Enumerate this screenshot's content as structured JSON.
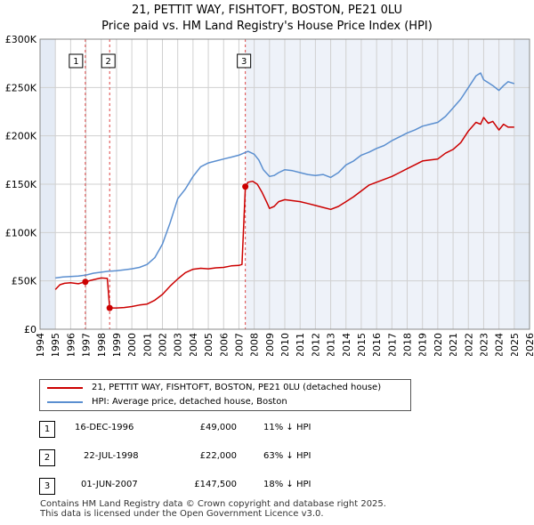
{
  "chart_data": {
    "type": "line",
    "title": "21, PETTIT WAY, FISHTOFT, BOSTON, PE21 0LU",
    "subtitle": "Price paid vs. HM Land Registry's House Price Index (HPI)",
    "xlim": [
      1994,
      2026
    ],
    "ylim": [
      0,
      300000
    ],
    "x_ticks": [
      "1994",
      "1995",
      "1996",
      "1997",
      "1998",
      "1999",
      "2000",
      "2001",
      "2002",
      "2003",
      "2004",
      "2005",
      "2006",
      "2007",
      "2008",
      "2009",
      "2010",
      "2011",
      "2012",
      "2013",
      "2014",
      "2015",
      "2016",
      "2017",
      "2018",
      "2019",
      "2020",
      "2021",
      "2022",
      "2023",
      "2024",
      "2025",
      "2026"
    ],
    "y_ticks": [
      {
        "value": 0,
        "label": "£0"
      },
      {
        "value": 50000,
        "label": "£50K"
      },
      {
        "value": 100000,
        "label": "£100K"
      },
      {
        "value": 150000,
        "label": "£150K"
      },
      {
        "value": 200000,
        "label": "£200K"
      },
      {
        "value": 250000,
        "label": "£250K"
      },
      {
        "value": 300000,
        "label": "£300K"
      }
    ],
    "shaded_ranges": [
      [
        1994,
        1995.0
      ],
      [
        2025.0,
        2026
      ]
    ],
    "series": [
      {
        "name": "21, PETTIT WAY, FISHTOFT, BOSTON, PE21 0LU (detached house)",
        "color": "#cc0000",
        "x": [
          1995.0,
          1995.3,
          1995.6,
          1996.0,
          1996.5,
          1996.96,
          1997.3,
          1997.7,
          1998.0,
          1998.4,
          1998.55,
          1999.0,
          1999.5,
          2000.0,
          2000.5,
          2001.0,
          2001.5,
          2002.0,
          2002.5,
          2003.0,
          2003.5,
          2004.0,
          2004.5,
          2005.0,
          2005.5,
          2006.0,
          2006.5,
          2007.0,
          2007.2,
          2007.42,
          2007.6,
          2007.9,
          2008.2,
          2008.5,
          2008.8,
          2009.0,
          2009.3,
          2009.6,
          2010.0,
          2010.5,
          2011.0,
          2011.5,
          2012.0,
          2012.5,
          2013.0,
          2013.5,
          2014.0,
          2014.5,
          2015.0,
          2015.5,
          2016.0,
          2016.5,
          2017.0,
          2017.5,
          2018.0,
          2018.5,
          2019.0,
          2019.5,
          2020.0,
          2020.5,
          2021.0,
          2021.5,
          2022.0,
          2022.5,
          2022.8,
          2023.0,
          2023.3,
          2023.6,
          2024.0,
          2024.3,
          2024.6,
          2025.0
        ],
        "values": [
          41000,
          46000,
          47500,
          48000,
          47000,
          49000,
          50500,
          52000,
          53000,
          52500,
          22000,
          22000,
          22500,
          23500,
          25000,
          26000,
          30000,
          36000,
          44500,
          52000,
          58500,
          62000,
          63000,
          62500,
          63500,
          64000,
          65500,
          66000,
          67000,
          147500,
          152000,
          153000,
          150000,
          142000,
          132000,
          125000,
          127000,
          132000,
          134000,
          133000,
          132000,
          130000,
          128000,
          126000,
          124000,
          127000,
          132000,
          137000,
          143000,
          149000,
          152000,
          155000,
          158000,
          162000,
          166000,
          170000,
          174000,
          175000,
          176000,
          182000,
          186000,
          193000,
          205000,
          214000,
          212000,
          219000,
          213000,
          215000,
          206000,
          212000,
          209000,
          209000
        ]
      },
      {
        "name": "HPI: Average price, detached house, Boston",
        "color": "#5b8fd0",
        "x": [
          1995.0,
          1995.5,
          1996.0,
          1996.5,
          1997.0,
          1997.5,
          1998.0,
          1998.5,
          1999.0,
          1999.5,
          2000.0,
          2000.5,
          2001.0,
          2001.5,
          2002.0,
          2002.5,
          2003.0,
          2003.5,
          2004.0,
          2004.5,
          2005.0,
          2005.5,
          2006.0,
          2006.5,
          2007.0,
          2007.3,
          2007.6,
          2008.0,
          2008.3,
          2008.6,
          2009.0,
          2009.3,
          2009.6,
          2010.0,
          2010.5,
          2011.0,
          2011.5,
          2012.0,
          2012.5,
          2013.0,
          2013.5,
          2014.0,
          2014.5,
          2015.0,
          2015.5,
          2016.0,
          2016.5,
          2017.0,
          2017.5,
          2018.0,
          2018.5,
          2019.0,
          2019.5,
          2020.0,
          2020.5,
          2021.0,
          2021.5,
          2022.0,
          2022.5,
          2022.8,
          2023.0,
          2023.3,
          2023.6,
          2024.0,
          2024.3,
          2024.6,
          2025.0
        ],
        "values": [
          53000,
          54000,
          54500,
          55000,
          56000,
          58000,
          59000,
          60000,
          60500,
          61500,
          62500,
          64000,
          67000,
          74000,
          88000,
          110000,
          135000,
          145000,
          158000,
          168000,
          172000,
          174000,
          176000,
          178000,
          180000,
          182000,
          184000,
          181000,
          175000,
          165000,
          158000,
          159000,
          162000,
          165000,
          164000,
          162000,
          160000,
          159000,
          160000,
          157000,
          162000,
          170000,
          174000,
          180000,
          183000,
          187000,
          190000,
          195000,
          199000,
          203000,
          206000,
          210000,
          212000,
          214000,
          220000,
          229000,
          238000,
          250000,
          262000,
          265000,
          258000,
          255000,
          252000,
          247000,
          252000,
          256000,
          254000
        ]
      }
    ],
    "markers": [
      {
        "label": "1",
        "x": 1996.96,
        "price": 49000
      },
      {
        "label": "2",
        "x": 1998.55,
        "price": 22000
      },
      {
        "label": "3",
        "x": 2007.42,
        "price": 147500
      }
    ]
  },
  "legend": {
    "property_label": "21, PETTIT WAY, FISHTOFT, BOSTON, PE21 0LU (detached house)",
    "hpi_label": "HPI: Average price, detached house, Boston"
  },
  "transactions": [
    {
      "num": "1",
      "date": "16-DEC-1996",
      "price": "£49,000",
      "hpi": "11% ↓ HPI"
    },
    {
      "num": "2",
      "date": "22-JUL-1998",
      "price": "£22,000",
      "hpi": "63% ↓ HPI"
    },
    {
      "num": "3",
      "date": "01-JUN-2007",
      "price": "£147,500",
      "hpi": "18% ↓ HPI"
    }
  ],
  "footer": {
    "line1": "Contains HM Land Registry data © Crown copyright and database right 2025.",
    "line2": "This data is licensed under the Open Government Licence v3.0."
  }
}
